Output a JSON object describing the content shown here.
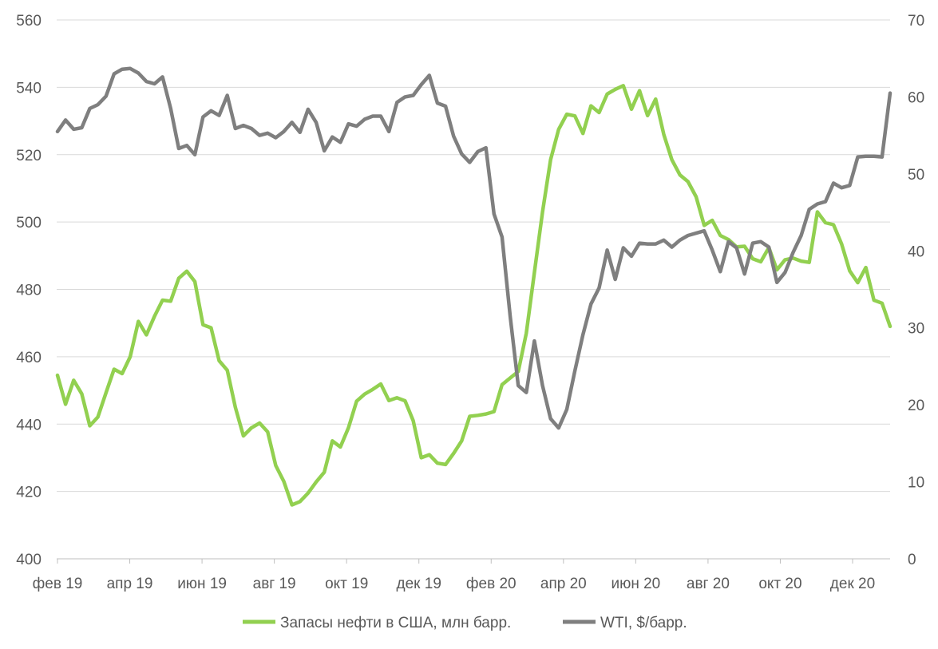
{
  "chart_data": {
    "type": "line",
    "x_tick_labels": [
      "фев 19",
      "апр 19",
      "июн 19",
      "авг 19",
      "окт 19",
      "дек 19",
      "фев 20",
      "апр 20",
      "июн 20",
      "авг 20",
      "окт 20",
      "дек 20"
    ],
    "y_left": {
      "min": 400,
      "max": 560,
      "step": 20,
      "ticks": [
        "400",
        "420",
        "440",
        "460",
        "480",
        "500",
        "520",
        "540",
        "560"
      ]
    },
    "y_right": {
      "min": 0,
      "max": 70,
      "step": 10,
      "ticks": [
        "0",
        "10",
        "20",
        "30",
        "40",
        "50",
        "60",
        "70"
      ]
    },
    "grid": "horizontal",
    "legend_position": "bottom",
    "series": [
      {
        "name": "Запасы нефти в США, млн барр.",
        "axis": "left",
        "color": "#92d050",
        "values": [
          454.5,
          445.9,
          453.0,
          449.0,
          439.5,
          442.1,
          449.3,
          456.3,
          455.0,
          460.0,
          470.5,
          466.5,
          472.0,
          476.8,
          476.5,
          483.3,
          485.4,
          482.3,
          469.5,
          468.6,
          458.8,
          456.0,
          445.0,
          436.5,
          438.9,
          440.3,
          437.7,
          427.7,
          423.0,
          416.0,
          417.0,
          419.5,
          422.8,
          425.7,
          435.0,
          433.2,
          438.9,
          446.8,
          448.9,
          450.3,
          451.9,
          447.0,
          447.8,
          446.9,
          441.0,
          430.0,
          430.9,
          428.4,
          428.0,
          431.3,
          435.0,
          442.3,
          442.6,
          443.0,
          443.7,
          451.7,
          453.7,
          455.6,
          467.0,
          485.0,
          503.0,
          518.5,
          527.5,
          532.0,
          531.5,
          526.3,
          534.5,
          532.5,
          538.0,
          539.4,
          540.5,
          533.5,
          539.0,
          531.6,
          536.5,
          526.0,
          518.5,
          514.0,
          512.0,
          507.5,
          499.0,
          500.5,
          496.0,
          494.8,
          492.6,
          492.8,
          489.1,
          488.2,
          492.4,
          485.8,
          488.8,
          489.3,
          488.4,
          488.0,
          503.0,
          499.8,
          499.2,
          493.5,
          485.5,
          482.0,
          486.5,
          476.8,
          475.9,
          469.0
        ]
      },
      {
        "name": "WTI, $/барр.",
        "axis": "right",
        "color": "#7f7f7f",
        "values": [
          55.5,
          57.0,
          55.8,
          56.0,
          58.5,
          59.0,
          60.1,
          63.0,
          63.6,
          63.7,
          63.1,
          62.0,
          61.7,
          62.6,
          58.5,
          53.3,
          53.7,
          52.5,
          57.4,
          58.2,
          57.6,
          60.2,
          55.9,
          56.3,
          55.9,
          55.0,
          55.3,
          54.7,
          55.5,
          56.7,
          55.4,
          58.4,
          56.7,
          53.0,
          54.8,
          54.1,
          56.5,
          56.2,
          57.1,
          57.5,
          57.5,
          55.5,
          59.3,
          60.0,
          60.2,
          61.6,
          62.8,
          59.2,
          58.8,
          54.9,
          52.6,
          51.5,
          52.9,
          53.4,
          44.8,
          41.8,
          31.5,
          22.5,
          21.6,
          28.3,
          22.5,
          18.2,
          17.0,
          19.4,
          24.4,
          29.1,
          33.1,
          35.2,
          40.1,
          36.3,
          40.4,
          39.3,
          41.0,
          40.9,
          40.9,
          41.4,
          40.5,
          41.4,
          42.0,
          42.3,
          42.6,
          40.1,
          37.3,
          41.2,
          40.4,
          37.0,
          41.0,
          41.2,
          40.5,
          35.9,
          37.2,
          39.8,
          42.0,
          45.4,
          46.1,
          46.4,
          48.8,
          48.2,
          48.5,
          52.2,
          52.3,
          52.3,
          52.2,
          60.5
        ]
      }
    ]
  },
  "legend": {
    "items": [
      {
        "label": "Запасы нефти в США, млн барр.",
        "color": "#92d050"
      },
      {
        "label": "WTI, $/барр.",
        "color": "#7f7f7f"
      }
    ]
  }
}
